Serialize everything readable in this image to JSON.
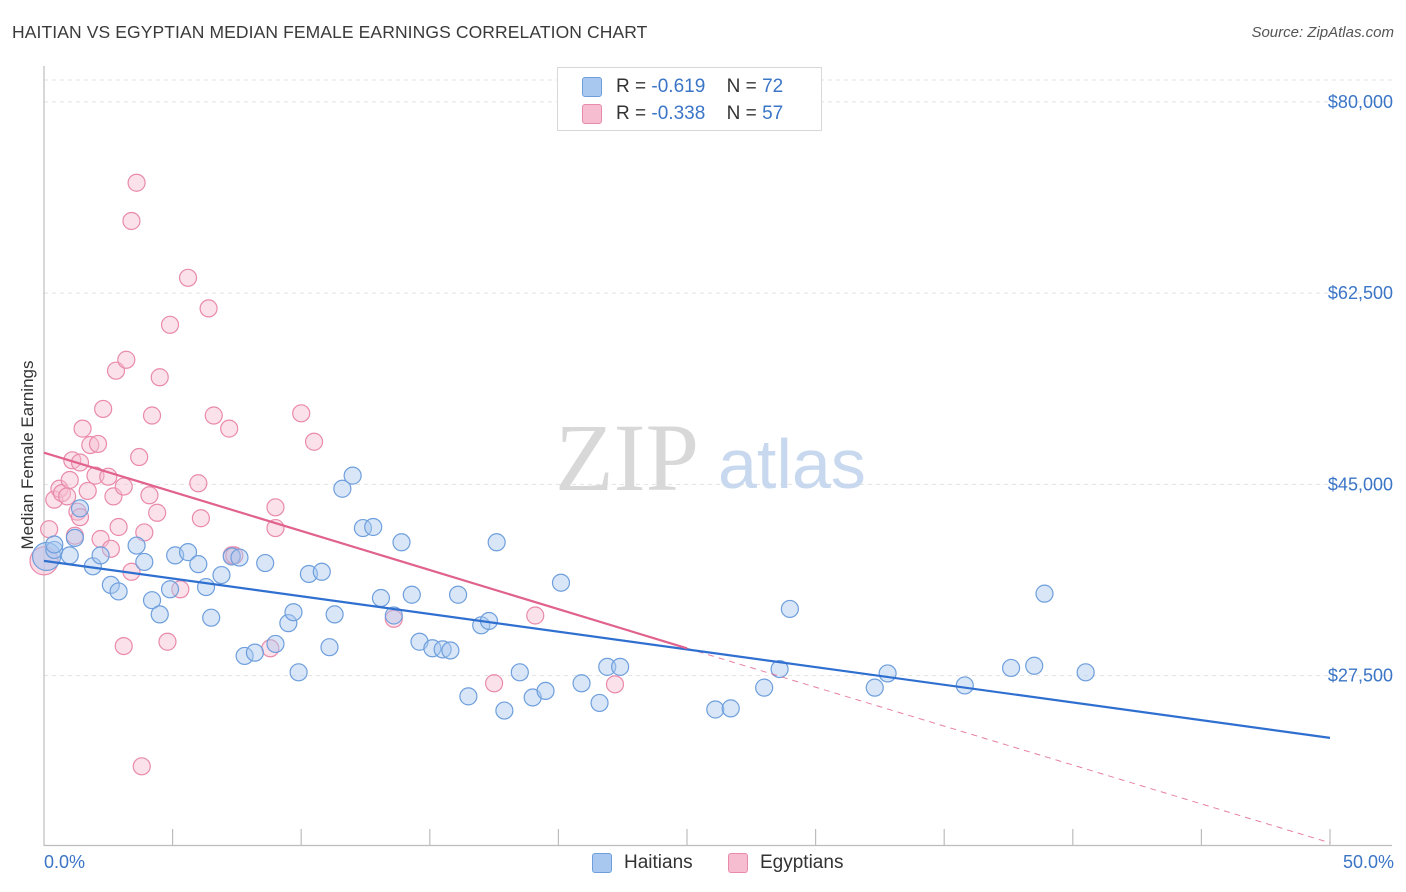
{
  "title": "HAITIAN VS EGYPTIAN MEDIAN FEMALE EARNINGS CORRELATION CHART",
  "source": "Source: ZipAtlas.com",
  "watermark": {
    "zip": "ZIP",
    "atlas": "atlas"
  },
  "legend": {
    "rows": [
      {
        "r_label": "R =",
        "r_value": "-0.619",
        "n_label": "N =",
        "n_value": "72",
        "color": "#a9c8f0"
      },
      {
        "r_label": "R =",
        "r_value": "-0.338",
        "n_label": "N =",
        "n_value": "57",
        "color": "#f6bcd0"
      }
    ]
  },
  "bottom_legend": {
    "haitians": "Haitians",
    "egyptians": "Egyptians"
  },
  "colors": {
    "haitian_fill": "#a9c8f0",
    "haitian_stroke": "#6e9fdc",
    "haitian_line": "#2f6fd0",
    "egyptian_fill": "#f6bcd0",
    "egyptian_stroke": "#e98aab",
    "egyptian_line": "#e0628d",
    "accent_text": "#3b75c6"
  },
  "chart_data": {
    "type": "scatter",
    "title": "HAITIAN VS EGYPTIAN MEDIAN FEMALE EARNINGS CORRELATION CHART",
    "xlabel": "",
    "ylabel": "Median Female Earnings",
    "xlim": [
      0,
      50
    ],
    "ylim": [
      12000,
      82000
    ],
    "x_tick_labels": [
      "0.0%",
      "50.0%"
    ],
    "y_ticks": [
      27500,
      45000,
      62500,
      80000
    ],
    "y_tick_labels": [
      "$27,500",
      "$45,000",
      "$62,500",
      "$80,000"
    ],
    "grid": true,
    "legend_position": "top-center",
    "series": [
      {
        "name": "Haitians",
        "r": -0.619,
        "n": 72,
        "trend": {
          "x": [
            0,
            50
          ],
          "y": [
            38000,
            21800
          ]
        },
        "points": [
          [
            0.1,
            38.4
          ],
          [
            0.4,
            39.0
          ],
          [
            0.4,
            39.5
          ],
          [
            1.0,
            38.5
          ],
          [
            1.2,
            40.1
          ],
          [
            1.4,
            42.8
          ],
          [
            1.9,
            37.5
          ],
          [
            2.2,
            38.5
          ],
          [
            2.6,
            35.8
          ],
          [
            2.9,
            35.2
          ],
          [
            3.6,
            39.4
          ],
          [
            3.9,
            37.9
          ],
          [
            4.2,
            34.4
          ],
          [
            4.5,
            33.1
          ],
          [
            4.9,
            35.4
          ],
          [
            5.1,
            38.5
          ],
          [
            5.6,
            38.8
          ],
          [
            6.0,
            37.7
          ],
          [
            6.3,
            35.6
          ],
          [
            6.5,
            32.8
          ],
          [
            6.9,
            36.7
          ],
          [
            7.3,
            38.4
          ],
          [
            7.6,
            38.3
          ],
          [
            7.8,
            29.3
          ],
          [
            8.2,
            29.6
          ],
          [
            8.6,
            37.8
          ],
          [
            9.0,
            30.4
          ],
          [
            9.5,
            32.3
          ],
          [
            9.7,
            33.3
          ],
          [
            9.9,
            27.8
          ],
          [
            10.3,
            36.8
          ],
          [
            10.8,
            37.0
          ],
          [
            11.1,
            30.1
          ],
          [
            11.3,
            33.1
          ],
          [
            11.6,
            44.6
          ],
          [
            12.0,
            45.8
          ],
          [
            12.4,
            41.0
          ],
          [
            12.8,
            41.1
          ],
          [
            13.1,
            34.6
          ],
          [
            13.6,
            33.0
          ],
          [
            13.9,
            39.7
          ],
          [
            14.3,
            34.9
          ],
          [
            14.6,
            30.6
          ],
          [
            15.1,
            30.0
          ],
          [
            15.5,
            29.9
          ],
          [
            15.8,
            29.8
          ],
          [
            16.1,
            34.9
          ],
          [
            16.5,
            25.6
          ],
          [
            17.0,
            32.1
          ],
          [
            17.3,
            32.5
          ],
          [
            17.6,
            39.7
          ],
          [
            17.9,
            24.3
          ],
          [
            18.5,
            27.8
          ],
          [
            19.0,
            25.5
          ],
          [
            19.5,
            26.1
          ],
          [
            20.1,
            36.0
          ],
          [
            20.9,
            26.8
          ],
          [
            21.6,
            25.0
          ],
          [
            21.9,
            28.3
          ],
          [
            22.4,
            28.3
          ],
          [
            26.1,
            24.4
          ],
          [
            26.7,
            24.5
          ],
          [
            28.0,
            26.4
          ],
          [
            28.6,
            28.1
          ],
          [
            29.0,
            33.6
          ],
          [
            32.3,
            26.4
          ],
          [
            32.8,
            27.7
          ],
          [
            35.8,
            26.6
          ],
          [
            37.6,
            28.2
          ],
          [
            38.5,
            28.4
          ],
          [
            38.9,
            35.0
          ],
          [
            40.5,
            27.8
          ]
        ]
      },
      {
        "name": "Egyptians",
        "r": -0.338,
        "n": 57,
        "trend": {
          "x": [
            0,
            25
          ],
          "y": [
            47900,
            30000
          ]
        },
        "trend_dashed": {
          "x": [
            25,
            50
          ],
          "y": [
            30000,
            12200
          ]
        },
        "points": [
          [
            0.0,
            38.0
          ],
          [
            0.2,
            40.9
          ],
          [
            0.4,
            43.6
          ],
          [
            0.6,
            44.6
          ],
          [
            0.7,
            44.2
          ],
          [
            0.9,
            43.9
          ],
          [
            1.0,
            45.4
          ],
          [
            1.1,
            47.2
          ],
          [
            1.2,
            40.3
          ],
          [
            1.3,
            42.5
          ],
          [
            1.4,
            42.0
          ],
          [
            1.4,
            47.0
          ],
          [
            1.5,
            50.1
          ],
          [
            1.7,
            44.4
          ],
          [
            1.8,
            48.6
          ],
          [
            2.0,
            45.8
          ],
          [
            2.1,
            48.7
          ],
          [
            2.2,
            40.0
          ],
          [
            2.3,
            51.9
          ],
          [
            2.5,
            45.7
          ],
          [
            2.6,
            39.1
          ],
          [
            2.7,
            43.9
          ],
          [
            2.8,
            55.4
          ],
          [
            2.9,
            41.1
          ],
          [
            3.1,
            30.2
          ],
          [
            3.1,
            44.8
          ],
          [
            3.2,
            56.4
          ],
          [
            3.4,
            69.1
          ],
          [
            3.4,
            37.0
          ],
          [
            3.6,
            72.6
          ],
          [
            3.7,
            47.5
          ],
          [
            3.8,
            19.2
          ],
          [
            3.9,
            40.6
          ],
          [
            4.1,
            44.0
          ],
          [
            4.2,
            51.3
          ],
          [
            4.4,
            42.4
          ],
          [
            4.5,
            54.8
          ],
          [
            4.8,
            30.6
          ],
          [
            4.9,
            59.6
          ],
          [
            5.3,
            35.4
          ],
          [
            5.6,
            63.9
          ],
          [
            6.0,
            45.1
          ],
          [
            6.1,
            41.9
          ],
          [
            6.4,
            61.1
          ],
          [
            6.6,
            51.3
          ],
          [
            7.2,
            50.1
          ],
          [
            7.3,
            38.5
          ],
          [
            7.4,
            38.5
          ],
          [
            8.8,
            30.0
          ],
          [
            9.0,
            41.0
          ],
          [
            9.0,
            42.9
          ],
          [
            10.0,
            51.5
          ],
          [
            10.5,
            48.9
          ],
          [
            13.6,
            32.7
          ],
          [
            17.5,
            26.8
          ],
          [
            19.1,
            33.0
          ],
          [
            22.2,
            26.7
          ]
        ]
      }
    ]
  }
}
